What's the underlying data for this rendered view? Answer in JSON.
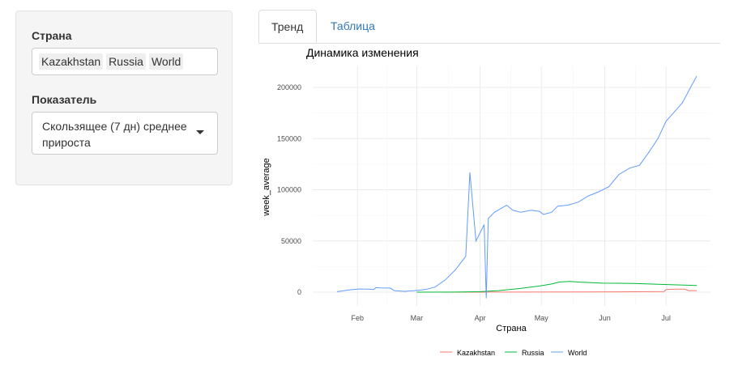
{
  "sidebar": {
    "country_label": "Страна",
    "countries": [
      "Kazakhstan",
      "Russia",
      "World"
    ],
    "indicator_label": "Показатель",
    "indicator_value": "Скользящее (7 дн) среднее прироста"
  },
  "tabs": [
    {
      "label": "Тренд",
      "active": true
    },
    {
      "label": "Таблица",
      "active": false
    }
  ],
  "chart_data": {
    "type": "line",
    "title": "Динамика изменения",
    "xlabel": "Страна",
    "ylabel": "week_average",
    "x_ticks": [
      "Feb",
      "Mar",
      "Apr",
      "May",
      "Jun",
      "Jul"
    ],
    "y_ticks": [
      "0",
      "50000",
      "100000",
      "150000",
      "200000"
    ],
    "ylim": [
      -8000,
      212000
    ],
    "x_range": [
      "2020-01-22",
      "2020-07-16"
    ],
    "grid": true,
    "legend_position": "bottom",
    "series": [
      {
        "name": "Kazakhstan",
        "color": "#f8766d",
        "points": [
          [
            "2020-03-14",
            0
          ],
          [
            "2020-04-15",
            50
          ],
          [
            "2020-05-15",
            150
          ],
          [
            "2020-06-15",
            400
          ],
          [
            "2020-06-30",
            600
          ],
          [
            "2020-07-01",
            2500
          ],
          [
            "2020-07-06",
            3000
          ],
          [
            "2020-07-10",
            2900
          ],
          [
            "2020-07-12",
            1500
          ],
          [
            "2020-07-16",
            1500
          ]
        ]
      },
      {
        "name": "Russia",
        "color": "#00ba38",
        "points": [
          [
            "2020-03-01",
            0
          ],
          [
            "2020-03-20",
            100
          ],
          [
            "2020-04-01",
            500
          ],
          [
            "2020-04-10",
            1500
          ],
          [
            "2020-04-20",
            3500
          ],
          [
            "2020-04-30",
            6000
          ],
          [
            "2020-05-06",
            8000
          ],
          [
            "2020-05-10",
            10000
          ],
          [
            "2020-05-15",
            10500
          ],
          [
            "2020-05-20",
            9800
          ],
          [
            "2020-05-31",
            8800
          ],
          [
            "2020-06-15",
            8500
          ],
          [
            "2020-06-30",
            7500
          ],
          [
            "2020-07-16",
            6500
          ]
        ]
      },
      {
        "name": "World",
        "color": "#619cff",
        "points": [
          [
            "2020-01-22",
            500
          ],
          [
            "2020-01-28",
            2200
          ],
          [
            "2020-02-02",
            3200
          ],
          [
            "2020-02-06",
            3000
          ],
          [
            "2020-02-09",
            2600
          ],
          [
            "2020-02-10",
            4500
          ],
          [
            "2020-02-12",
            4200
          ],
          [
            "2020-02-17",
            4000
          ],
          [
            "2020-02-19",
            1500
          ],
          [
            "2020-02-24",
            800
          ],
          [
            "2020-02-29",
            1500
          ],
          [
            "2020-03-05",
            2500
          ],
          [
            "2020-03-10",
            5000
          ],
          [
            "2020-03-15",
            12000
          ],
          [
            "2020-03-20",
            22000
          ],
          [
            "2020-03-25",
            35000
          ],
          [
            "2020-03-27",
            117000
          ],
          [
            "2020-03-30",
            50000
          ],
          [
            "2020-04-03",
            66000
          ],
          [
            "2020-04-04",
            -6000
          ],
          [
            "2020-04-05",
            72000
          ],
          [
            "2020-04-08",
            78000
          ],
          [
            "2020-04-14",
            85000
          ],
          [
            "2020-04-17",
            80000
          ],
          [
            "2020-04-21",
            78000
          ],
          [
            "2020-04-26",
            80000
          ],
          [
            "2020-04-30",
            79000
          ],
          [
            "2020-05-02",
            76000
          ],
          [
            "2020-05-06",
            78000
          ],
          [
            "2020-05-09",
            84000
          ],
          [
            "2020-05-14",
            85000
          ],
          [
            "2020-05-19",
            88000
          ],
          [
            "2020-05-24",
            94000
          ],
          [
            "2020-05-29",
            98000
          ],
          [
            "2020-06-03",
            103000
          ],
          [
            "2020-06-08",
            115000
          ],
          [
            "2020-06-13",
            121000
          ],
          [
            "2020-06-18",
            124000
          ],
          [
            "2020-06-22",
            135000
          ],
          [
            "2020-06-27",
            150000
          ],
          [
            "2020-07-01",
            167000
          ],
          [
            "2020-07-05",
            176000
          ],
          [
            "2020-07-09",
            185000
          ],
          [
            "2020-07-13",
            200000
          ],
          [
            "2020-07-16",
            211000
          ]
        ]
      }
    ]
  }
}
